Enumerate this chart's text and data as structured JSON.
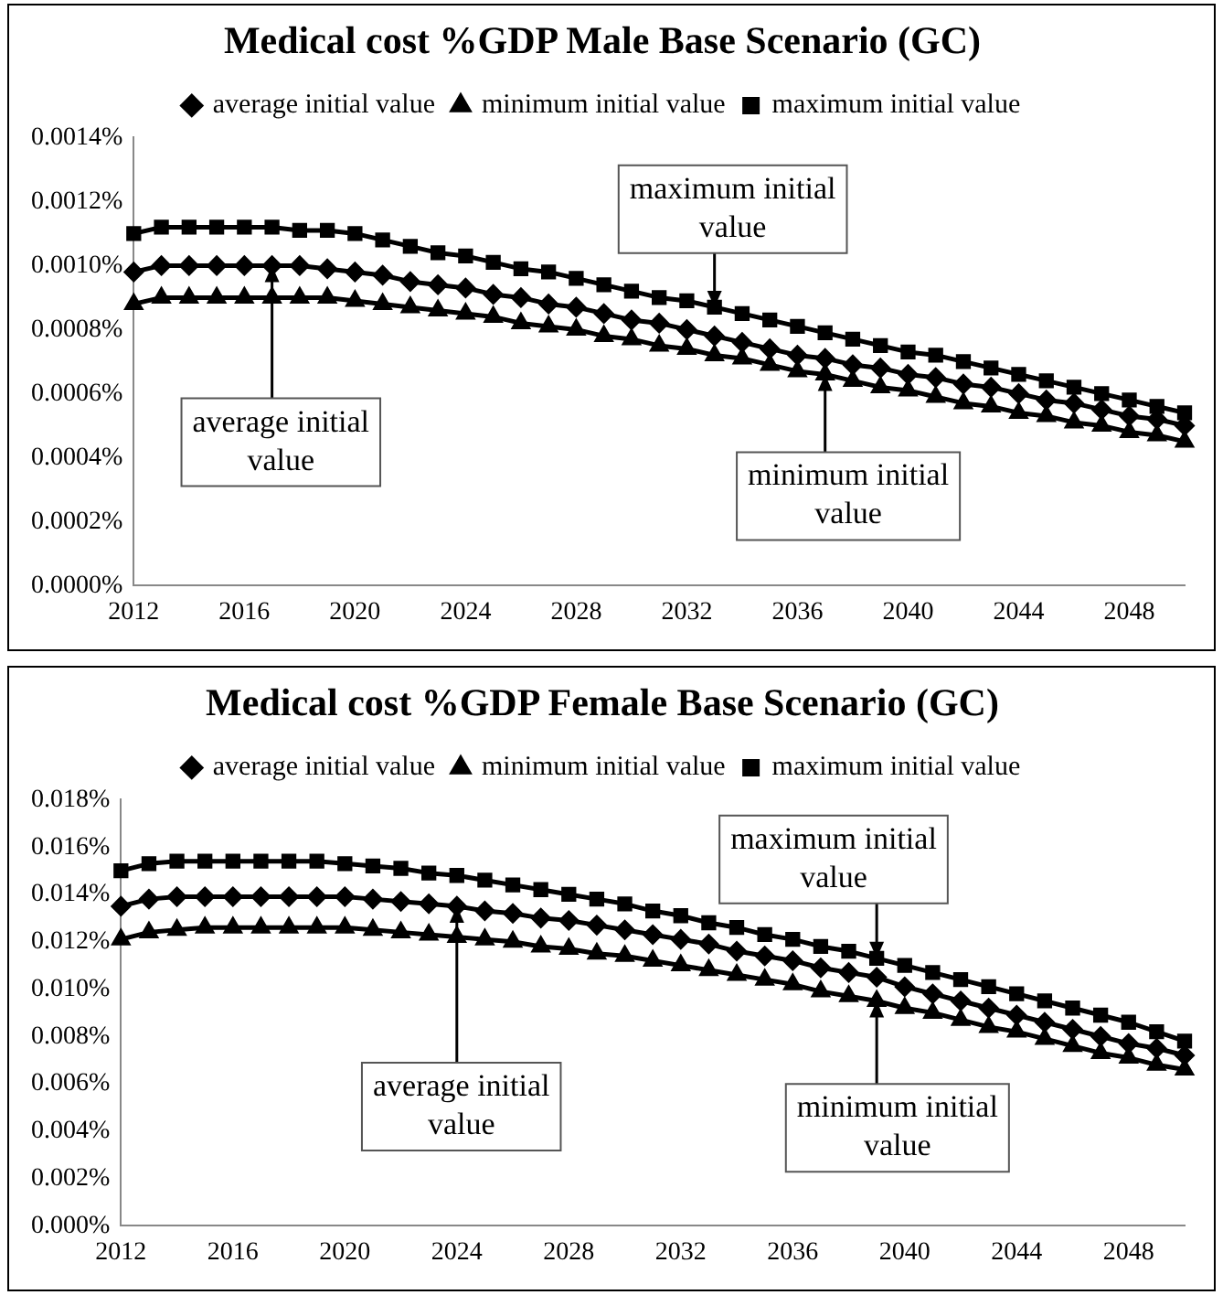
{
  "chart_data": [
    {
      "type": "line",
      "title": "Medical cost %GDP Male Base Scenario (GC)",
      "categories": [
        "2012",
        null,
        null,
        null,
        "2016",
        null,
        null,
        null,
        "2020",
        null,
        null,
        null,
        "2024",
        null,
        null,
        null,
        "2028",
        null,
        null,
        null,
        "2032",
        null,
        null,
        null,
        "2036",
        null,
        null,
        null,
        "2040",
        null,
        null,
        null,
        "2044",
        null,
        null,
        null,
        "2048",
        null,
        null
      ],
      "series": [
        {
          "name": "average initial value",
          "color": "#000000",
          "marker": "diamond",
          "values": [
            0.00098,
            0.001,
            0.001,
            0.001,
            0.001,
            0.001,
            0.001,
            0.00099,
            0.00098,
            0.00097,
            0.00095,
            0.00094,
            0.00093,
            0.00091,
            0.0009,
            0.00088,
            0.00087,
            0.00085,
            0.00083,
            0.00082,
            0.0008,
            0.00078,
            0.00076,
            0.00074,
            0.00072,
            0.00071,
            0.00069,
            0.00068,
            0.00066,
            0.00065,
            0.00063,
            0.00062,
            0.0006,
            0.00058,
            0.00057,
            0.00055,
            0.00053,
            0.00052,
            0.0005
          ]
        },
        {
          "name": "minimum initial value",
          "color": "#000000",
          "marker": "triangle",
          "values": [
            0.00088,
            0.0009,
            0.0009,
            0.0009,
            0.0009,
            0.0009,
            0.0009,
            0.0009,
            0.00089,
            0.00088,
            0.00087,
            0.00086,
            0.00085,
            0.00084,
            0.00082,
            0.00081,
            0.0008,
            0.00078,
            0.00077,
            0.00075,
            0.00074,
            0.00072,
            0.00071,
            0.00069,
            0.00067,
            0.00066,
            0.00064,
            0.00062,
            0.00061,
            0.00059,
            0.00057,
            0.00056,
            0.00054,
            0.00053,
            0.00051,
            0.0005,
            0.00048,
            0.00047,
            0.00045
          ]
        },
        {
          "name": "maximum initial value",
          "color": "#000000",
          "marker": "square",
          "values": [
            0.0011,
            0.00112,
            0.00112,
            0.00112,
            0.00112,
            0.00112,
            0.00111,
            0.00111,
            0.0011,
            0.00108,
            0.00106,
            0.00104,
            0.00103,
            0.00101,
            0.00099,
            0.00098,
            0.00096,
            0.00094,
            0.00092,
            0.0009,
            0.00089,
            0.00087,
            0.00085,
            0.00083,
            0.00081,
            0.00079,
            0.00077,
            0.00075,
            0.00073,
            0.00072,
            0.0007,
            0.00068,
            0.00066,
            0.00064,
            0.00062,
            0.0006,
            0.00058,
            0.00056,
            0.00054
          ]
        }
      ],
      "ylim": [
        0,
        0.0014
      ],
      "yticks": [
        {
          "value": 0,
          "label": "0.0000%"
        },
        {
          "value": 0.0002,
          "label": "0.0002%"
        },
        {
          "value": 0.0004,
          "label": "0.0004%"
        },
        {
          "value": 0.0006,
          "label": "0.0006%"
        },
        {
          "value": 0.0008,
          "label": "0.0008%"
        },
        {
          "value": 0.001,
          "label": "0.0010%"
        },
        {
          "value": 0.0012,
          "label": "0.0012%"
        },
        {
          "value": 0.0014,
          "label": "0.0014%"
        }
      ],
      "grid": false,
      "legend": "top",
      "line_style": "solid",
      "annotations": [
        {
          "text": "maximum initial value",
          "y": 0.00087
        },
        {
          "text": "average initial value",
          "y": 0.001
        },
        {
          "text": "minimum initial value",
          "y": 0.00066
        }
      ]
    },
    {
      "type": "line",
      "title": "Medical cost %GDP Female Base Scenario (GC)",
      "categories": [
        "2012",
        null,
        null,
        null,
        "2016",
        null,
        null,
        null,
        "2020",
        null,
        null,
        null,
        "2024",
        null,
        null,
        null,
        "2028",
        null,
        null,
        null,
        "2032",
        null,
        null,
        null,
        "2036",
        null,
        null,
        null,
        "2040",
        null,
        null,
        null,
        "2044",
        null,
        null,
        null,
        "2048",
        null,
        null
      ],
      "series": [
        {
          "name": "average initial value",
          "color": "#000000",
          "marker": "diamond",
          "values": [
            0.0135,
            0.0138,
            0.0139,
            0.0139,
            0.0139,
            0.0139,
            0.0139,
            0.0139,
            0.0139,
            0.0138,
            0.0137,
            0.0136,
            0.0135,
            0.0133,
            0.0132,
            0.013,
            0.0129,
            0.0127,
            0.0125,
            0.0123,
            0.0121,
            0.0119,
            0.0116,
            0.0114,
            0.0112,
            0.0109,
            0.0107,
            0.0105,
            0.0101,
            0.0098,
            0.0095,
            0.0092,
            0.0089,
            0.0086,
            0.0083,
            0.008,
            0.0077,
            0.0075,
            0.0072
          ]
        },
        {
          "name": "minimum initial value",
          "color": "#000000",
          "marker": "triangle",
          "values": [
            0.0121,
            0.0124,
            0.0125,
            0.0126,
            0.0126,
            0.0126,
            0.0126,
            0.0126,
            0.0126,
            0.0125,
            0.0124,
            0.0123,
            0.0122,
            0.0121,
            0.012,
            0.0118,
            0.0117,
            0.0115,
            0.0114,
            0.0112,
            0.011,
            0.0108,
            0.0106,
            0.0104,
            0.0102,
            0.0099,
            0.0097,
            0.0095,
            0.0092,
            0.009,
            0.0087,
            0.0084,
            0.0082,
            0.0079,
            0.0076,
            0.0073,
            0.0071,
            0.0068,
            0.0066
          ]
        },
        {
          "name": "maximum initial value",
          "color": "#000000",
          "marker": "square",
          "values": [
            0.015,
            0.0153,
            0.0154,
            0.0154,
            0.0154,
            0.0154,
            0.0154,
            0.0154,
            0.0153,
            0.0152,
            0.0151,
            0.0149,
            0.0148,
            0.0146,
            0.0144,
            0.0142,
            0.014,
            0.0138,
            0.0136,
            0.0133,
            0.0131,
            0.0128,
            0.0126,
            0.0123,
            0.0121,
            0.0118,
            0.0116,
            0.0113,
            0.011,
            0.0107,
            0.0104,
            0.0101,
            0.0098,
            0.0095,
            0.0092,
            0.0089,
            0.0086,
            0.0082,
            0.0078
          ]
        }
      ],
      "ylim": [
        0,
        0.018
      ],
      "yticks": [
        {
          "value": 0,
          "label": "0.000%"
        },
        {
          "value": 0.002,
          "label": "0.002%"
        },
        {
          "value": 0.004,
          "label": "0.004%"
        },
        {
          "value": 0.006,
          "label": "0.006%"
        },
        {
          "value": 0.008,
          "label": "0.008%"
        },
        {
          "value": 0.01,
          "label": "0.010%"
        },
        {
          "value": 0.012,
          "label": "0.012%"
        },
        {
          "value": 0.014,
          "label": "0.014%"
        },
        {
          "value": 0.016,
          "label": "0.016%"
        },
        {
          "value": 0.018,
          "label": "0.018%"
        }
      ],
      "grid": false,
      "legend": "top",
      "line_style": "solid",
      "annotations": [
        {
          "text": "maximum initial value",
          "y": 0.0113
        },
        {
          "text": "average initial value",
          "x": "2024",
          "y": 0.0135
        },
        {
          "text": "minimum initial value",
          "y": 0.0095
        }
      ]
    }
  ]
}
